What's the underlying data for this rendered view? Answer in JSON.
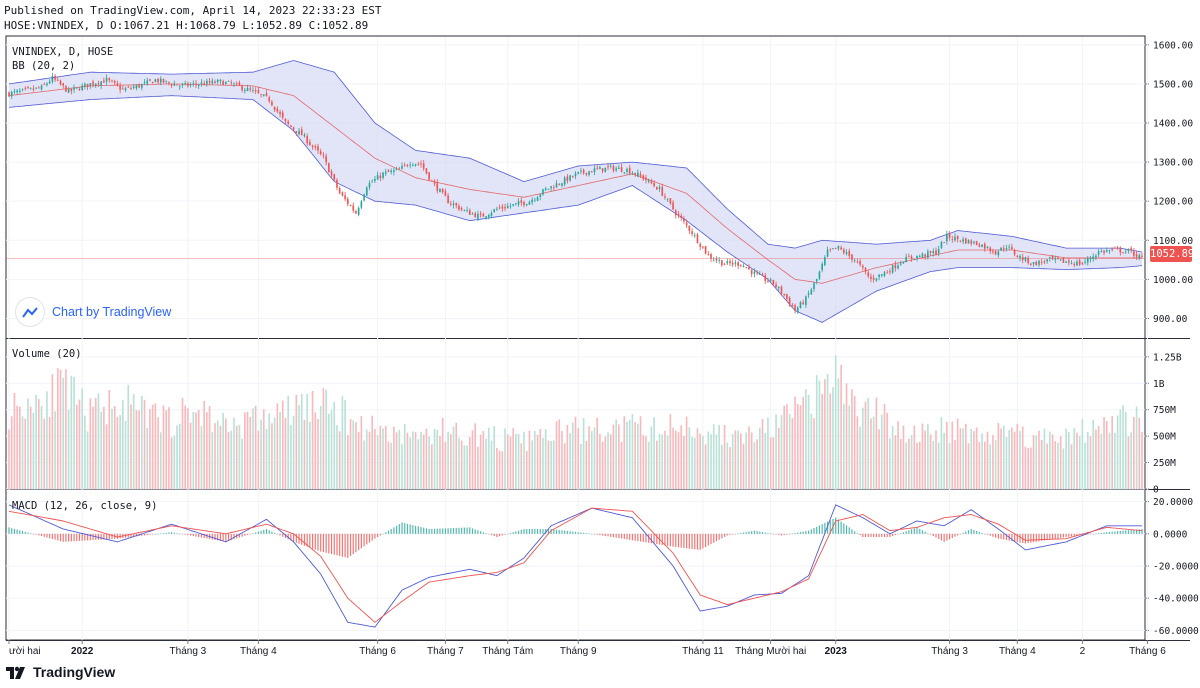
{
  "header": {
    "published": "Published on TradingView.com, April 14, 2023 22:33:23 EST",
    "ohlc": "HOSE:VNINDEX, D O:1067.21 H:1068.79 L:1052.89 C:1052.89"
  },
  "colors": {
    "up": "#26a69a",
    "down": "#ef5350",
    "up_vol": "#b9e1d6",
    "down_vol": "#f9b9bc",
    "band_fill": "#d6d9f3",
    "band_line": "#4f5bd5",
    "basis": "#e36a6a",
    "macd": "#4f5bd5",
    "signal": "#ef5350",
    "grid": "#f0f3fa",
    "border": "#2a2e39"
  },
  "badge": {
    "text": "Chart by TradingView"
  },
  "footer": {
    "brand": "TradingView"
  },
  "price_tag": "1052.89",
  "chart_data": [
    {
      "type": "candlestick",
      "title": "VNINDEX, D, HOSE",
      "indicator": "BB (20, 2)",
      "ylim": [
        850,
        1620
      ],
      "y_ticks": [
        "1600.00",
        "1500.00",
        "1400.00",
        "1300.00",
        "1200.00",
        "1100.00",
        "1000.00",
        "900.00"
      ],
      "y_tick_values": [
        1600,
        1500,
        1400,
        1300,
        1200,
        1100,
        1000,
        900
      ],
      "last_close": 1052.89,
      "close_anchors": [
        [
          0,
          1475
        ],
        [
          12,
          1490
        ],
        [
          16,
          1515
        ],
        [
          22,
          1480
        ],
        [
          30,
          1500
        ],
        [
          36,
          1510
        ],
        [
          42,
          1485
        ],
        [
          48,
          1495
        ],
        [
          54,
          1510
        ],
        [
          60,
          1500
        ],
        [
          64,
          1495
        ],
        [
          70,
          1500
        ],
        [
          78,
          1505
        ],
        [
          82,
          1500
        ],
        [
          90,
          1480
        ],
        [
          96,
          1460
        ],
        [
          102,
          1400
        ],
        [
          108,
          1370
        ],
        [
          116,
          1310
        ],
        [
          122,
          1220
        ],
        [
          128,
          1170
        ],
        [
          132,
          1240
        ],
        [
          138,
          1270
        ],
        [
          144,
          1280
        ],
        [
          148,
          1300
        ],
        [
          152,
          1295
        ],
        [
          156,
          1250
        ],
        [
          162,
          1200
        ],
        [
          168,
          1175
        ],
        [
          174,
          1160
        ],
        [
          180,
          1180
        ],
        [
          186,
          1190
        ],
        [
          192,
          1200
        ],
        [
          198,
          1230
        ],
        [
          204,
          1250
        ],
        [
          210,
          1270
        ],
        [
          216,
          1280
        ],
        [
          222,
          1285
        ],
        [
          228,
          1280
        ],
        [
          234,
          1260
        ],
        [
          240,
          1230
        ],
        [
          246,
          1170
        ],
        [
          252,
          1120
        ],
        [
          258,
          1060
        ],
        [
          264,
          1040
        ],
        [
          270,
          1040
        ],
        [
          276,
          1010
        ],
        [
          282,
          990
        ],
        [
          286,
          960
        ],
        [
          290,
          920
        ],
        [
          294,
          950
        ],
        [
          298,
          1000
        ],
        [
          302,
          1070
        ],
        [
          306,
          1080
        ],
        [
          312,
          1050
        ],
        [
          318,
          1000
        ],
        [
          324,
          1020
        ],
        [
          330,
          1050
        ],
        [
          336,
          1060
        ],
        [
          342,
          1070
        ],
        [
          346,
          1110
        ],
        [
          352,
          1100
        ],
        [
          358,
          1090
        ],
        [
          364,
          1070
        ],
        [
          368,
          1085
        ],
        [
          372,
          1060
        ],
        [
          378,
          1040
        ],
        [
          384,
          1050
        ],
        [
          390,
          1045
        ],
        [
          396,
          1040
        ],
        [
          402,
          1070
        ],
        [
          408,
          1075
        ],
        [
          414,
          1070
        ],
        [
          418,
          1053
        ]
      ],
      "bollinger": {
        "upper_anchors": [
          [
            0,
            1500
          ],
          [
            30,
            1530
          ],
          [
            60,
            1525
          ],
          [
            90,
            1530
          ],
          [
            105,
            1560
          ],
          [
            120,
            1530
          ],
          [
            135,
            1400
          ],
          [
            150,
            1330
          ],
          [
            170,
            1310
          ],
          [
            190,
            1250
          ],
          [
            210,
            1290
          ],
          [
            230,
            1300
          ],
          [
            250,
            1285
          ],
          [
            265,
            1180
          ],
          [
            280,
            1090
          ],
          [
            290,
            1080
          ],
          [
            300,
            1100
          ],
          [
            320,
            1090
          ],
          [
            340,
            1100
          ],
          [
            350,
            1125
          ],
          [
            370,
            1110
          ],
          [
            390,
            1080
          ],
          [
            410,
            1080
          ],
          [
            418,
            1070
          ]
        ],
        "basis_anchors": [
          [
            0,
            1470
          ],
          [
            30,
            1495
          ],
          [
            60,
            1500
          ],
          [
            90,
            1495
          ],
          [
            105,
            1470
          ],
          [
            120,
            1390
          ],
          [
            135,
            1310
          ],
          [
            150,
            1260
          ],
          [
            170,
            1230
          ],
          [
            190,
            1210
          ],
          [
            210,
            1240
          ],
          [
            230,
            1270
          ],
          [
            250,
            1220
          ],
          [
            265,
            1130
          ],
          [
            280,
            1050
          ],
          [
            290,
            1000
          ],
          [
            300,
            990
          ],
          [
            320,
            1030
          ],
          [
            340,
            1060
          ],
          [
            350,
            1075
          ],
          [
            370,
            1075
          ],
          [
            390,
            1055
          ],
          [
            410,
            1055
          ],
          [
            418,
            1055
          ]
        ],
        "lower_anchors": [
          [
            0,
            1440
          ],
          [
            30,
            1460
          ],
          [
            60,
            1470
          ],
          [
            90,
            1460
          ],
          [
            105,
            1380
          ],
          [
            120,
            1250
          ],
          [
            135,
            1200
          ],
          [
            150,
            1190
          ],
          [
            170,
            1150
          ],
          [
            190,
            1170
          ],
          [
            210,
            1190
          ],
          [
            230,
            1240
          ],
          [
            250,
            1150
          ],
          [
            265,
            1070
          ],
          [
            280,
            1000
          ],
          [
            290,
            920
          ],
          [
            300,
            890
          ],
          [
            320,
            970
          ],
          [
            340,
            1020
          ],
          [
            350,
            1030
          ],
          [
            370,
            1030
          ],
          [
            390,
            1025
          ],
          [
            410,
            1030
          ],
          [
            418,
            1035
          ]
        ]
      }
    },
    {
      "type": "bar",
      "title": "Volume (20)",
      "ylim": [
        0,
        1400
      ],
      "y_ticks": [
        "1.25B",
        "1B",
        "750M",
        "500M",
        "250M",
        "0"
      ],
      "y_tick_values": [
        1250,
        1000,
        750,
        500,
        250,
        0
      ],
      "unit": "million shares",
      "volume_anchors": [
        [
          0,
          750
        ],
        [
          10,
          850
        ],
        [
          20,
          950
        ],
        [
          30,
          700
        ],
        [
          40,
          850
        ],
        [
          50,
          700
        ],
        [
          60,
          650
        ],
        [
          70,
          750
        ],
        [
          80,
          600
        ],
        [
          90,
          650
        ],
        [
          100,
          700
        ],
        [
          110,
          800
        ],
        [
          120,
          750
        ],
        [
          130,
          600
        ],
        [
          140,
          550
        ],
        [
          150,
          500
        ],
        [
          160,
          550
        ],
        [
          170,
          520
        ],
        [
          180,
          480
        ],
        [
          190,
          450
        ],
        [
          200,
          520
        ],
        [
          210,
          560
        ],
        [
          220,
          540
        ],
        [
          230,
          580
        ],
        [
          240,
          560
        ],
        [
          250,
          600
        ],
        [
          260,
          520
        ],
        [
          270,
          480
        ],
        [
          280,
          560
        ],
        [
          290,
          720
        ],
        [
          300,
          900
        ],
        [
          305,
          1150
        ],
        [
          310,
          800
        ],
        [
          320,
          700
        ],
        [
          330,
          550
        ],
        [
          340,
          520
        ],
        [
          350,
          600
        ],
        [
          360,
          500
        ],
        [
          370,
          550
        ],
        [
          380,
          480
        ],
        [
          390,
          500
        ],
        [
          400,
          560
        ],
        [
          410,
          650
        ],
        [
          418,
          620
        ]
      ]
    },
    {
      "type": "line",
      "title": "MACD (12, 26, close, 9)",
      "ylim": [
        -66,
        26
      ],
      "y_ticks": [
        "20.0000",
        "0.0000",
        "-20.0000",
        "-40.0000",
        "-60.0000"
      ],
      "y_tick_values": [
        20,
        0,
        -20,
        -40,
        -60
      ],
      "macd_anchors": [
        [
          0,
          18
        ],
        [
          20,
          3
        ],
        [
          40,
          -5
        ],
        [
          60,
          6
        ],
        [
          80,
          -5
        ],
        [
          95,
          9
        ],
        [
          105,
          -5
        ],
        [
          115,
          -25
        ],
        [
          125,
          -55
        ],
        [
          135,
          -58
        ],
        [
          145,
          -35
        ],
        [
          155,
          -27
        ],
        [
          170,
          -22
        ],
        [
          180,
          -26
        ],
        [
          190,
          -15
        ],
        [
          200,
          5
        ],
        [
          215,
          16
        ],
        [
          230,
          10
        ],
        [
          245,
          -20
        ],
        [
          255,
          -48
        ],
        [
          265,
          -45
        ],
        [
          275,
          -38
        ],
        [
          285,
          -37
        ],
        [
          295,
          -26
        ],
        [
          305,
          18
        ],
        [
          315,
          10
        ],
        [
          325,
          0
        ],
        [
          335,
          8
        ],
        [
          345,
          5
        ],
        [
          355,
          15
        ],
        [
          365,
          3
        ],
        [
          375,
          -10
        ],
        [
          390,
          -5
        ],
        [
          405,
          5
        ],
        [
          418,
          5
        ]
      ],
      "signal_anchors": [
        [
          0,
          14
        ],
        [
          20,
          8
        ],
        [
          40,
          -2
        ],
        [
          60,
          5
        ],
        [
          80,
          0
        ],
        [
          95,
          6
        ],
        [
          105,
          0
        ],
        [
          115,
          -14
        ],
        [
          125,
          -40
        ],
        [
          135,
          -55
        ],
        [
          145,
          -42
        ],
        [
          155,
          -30
        ],
        [
          170,
          -26
        ],
        [
          180,
          -24
        ],
        [
          190,
          -18
        ],
        [
          200,
          2
        ],
        [
          215,
          16
        ],
        [
          230,
          14
        ],
        [
          245,
          -12
        ],
        [
          255,
          -38
        ],
        [
          265,
          -44
        ],
        [
          275,
          -40
        ],
        [
          285,
          -36
        ],
        [
          295,
          -28
        ],
        [
          305,
          8
        ],
        [
          315,
          12
        ],
        [
          325,
          2
        ],
        [
          335,
          4
        ],
        [
          345,
          10
        ],
        [
          355,
          12
        ],
        [
          365,
          6
        ],
        [
          375,
          -4
        ],
        [
          390,
          -3
        ],
        [
          405,
          4
        ],
        [
          418,
          2
        ]
      ]
    }
  ],
  "x_axis": {
    "labels": [
      "ười hai",
      "2022",
      "Tháng 3",
      "Tháng 4",
      "Tháng 6",
      "Tháng 7",
      "Tháng Tám",
      "Tháng 9",
      "Tháng 11",
      "Tháng Mười hai",
      "2023",
      "Tháng 3",
      "Tháng 4",
      "2",
      "Tháng 6"
    ],
    "label_bars": [
      0,
      27,
      66,
      92,
      136,
      161,
      184,
      210,
      256,
      281,
      305,
      347,
      372,
      396,
      420
    ],
    "bold": [
      false,
      true,
      false,
      false,
      false,
      false,
      false,
      false,
      false,
      false,
      true,
      false,
      false,
      false,
      false
    ]
  }
}
